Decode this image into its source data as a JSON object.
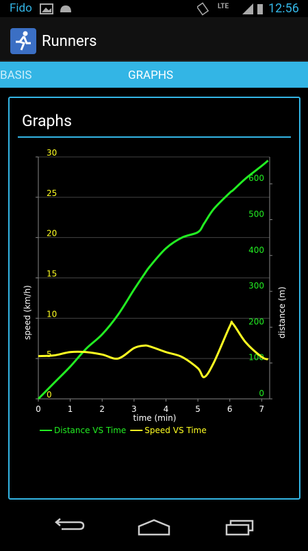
{
  "status_bar": {
    "carrier": "Fido",
    "network": "LTE",
    "time": "12:56"
  },
  "app_bar": {
    "title": "Runners"
  },
  "tabs": [
    "BASIS",
    "GRAPHS"
  ],
  "card": {
    "title": "Graphs"
  },
  "chart_data": {
    "type": "line",
    "x_label": "time (min)",
    "y_label": "speed (km/h)",
    "y2_label": "distance (m)",
    "x": [
      0,
      0.5,
      1,
      1.5,
      2,
      2.5,
      3,
      3.3,
      3.5,
      4,
      4.5,
      5,
      5.2,
      5.5,
      6,
      6.1,
      6.5,
      7,
      7.2
    ],
    "series": [
      {
        "name": "Distance VS Time",
        "color": "#22ee22",
        "axis": "y2",
        "values": [
          0,
          45,
          90,
          140,
          180,
          235,
          305,
          345,
          370,
          420,
          450,
          465,
          490,
          530,
          575,
          582,
          615,
          650,
          665
        ]
      },
      {
        "name": "Speed VS Time",
        "color": "#ffff22",
        "values": [
          5.3,
          5.4,
          5.8,
          5.8,
          5.5,
          5.0,
          6.3,
          6.6,
          6.5,
          5.8,
          5.2,
          3.8,
          2.7,
          4.5,
          9.0,
          9.3,
          7.0,
          5.2,
          4.9
        ]
      }
    ],
    "xlim": [
      0,
      7.25
    ],
    "xticks": [
      0,
      1,
      2,
      3,
      4,
      5,
      6,
      7
    ],
    "ylim": [
      0,
      30
    ],
    "yticks": [
      0,
      5,
      10,
      15,
      20,
      25,
      30
    ],
    "y2lim": [
      0,
      675
    ],
    "y2ticks": [
      0,
      100,
      200,
      300,
      400,
      500,
      600
    ],
    "grid": true
  }
}
